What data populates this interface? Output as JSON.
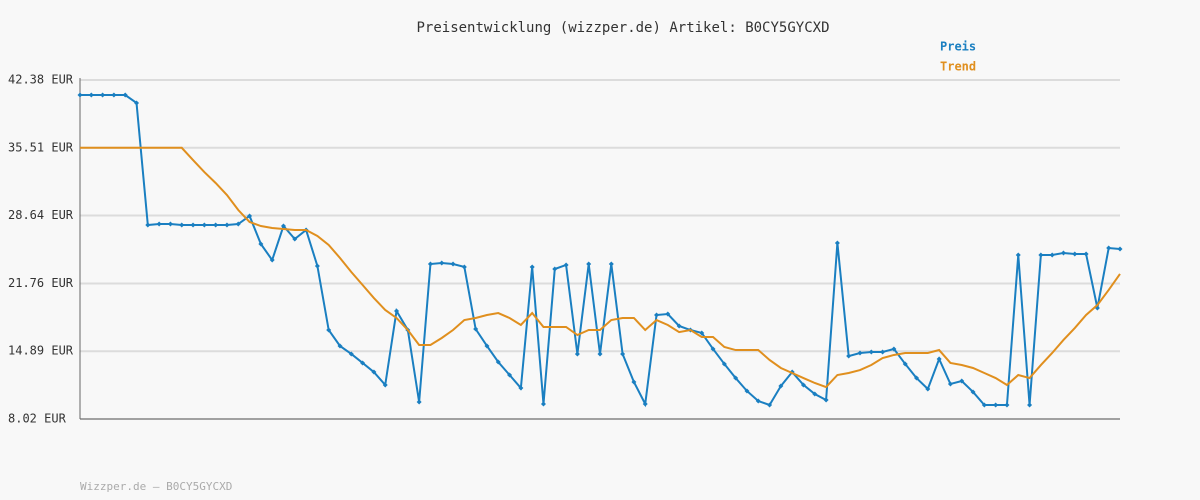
{
  "chart_data": {
    "type": "line",
    "title": "Preisentwicklung (wizzper.de) Artikel: B0CY5GYCXD",
    "footer": "Wizzper.de – B0CY5GYCXD",
    "legend": "top-right",
    "grid": true,
    "ylim": [
      8.02,
      42.38
    ],
    "yticks": [
      {
        "value": 8.02,
        "label": "8.02 EUR"
      },
      {
        "value": 14.89,
        "label": "14.89 EUR"
      },
      {
        "value": 21.76,
        "label": "21.76 EUR"
      },
      {
        "value": 28.64,
        "label": "28.64 EUR"
      },
      {
        "value": 35.51,
        "label": "35.51 EUR"
      },
      {
        "value": 42.38,
        "label": "42.38 EUR"
      }
    ],
    "series": [
      {
        "name": "Preis",
        "color": "#1a7fc1",
        "markers": true,
        "values": [
          40.86,
          40.86,
          40.86,
          40.86,
          40.86,
          40.05,
          27.68,
          27.78,
          27.78,
          27.68,
          27.68,
          27.68,
          27.68,
          27.68,
          27.78,
          28.6,
          25.76,
          24.13,
          27.58,
          26.26,
          27.18,
          23.53,
          17.04,
          15.42,
          14.61,
          13.7,
          12.78,
          11.47,
          18.97,
          17.04,
          9.74,
          23.73,
          23.83,
          23.73,
          23.43,
          17.14,
          15.42,
          13.8,
          12.48,
          11.16,
          23.43,
          9.54,
          23.22,
          23.63,
          14.61,
          23.73,
          14.61,
          23.73,
          14.61,
          11.77,
          9.54,
          18.56,
          18.66,
          17.45,
          17.04,
          16.74,
          15.12,
          13.6,
          12.17,
          10.86,
          9.84,
          9.44,
          11.36,
          12.78,
          11.47,
          10.55,
          9.94,
          25.86,
          14.4,
          14.71,
          14.81,
          14.81,
          15.12,
          13.6,
          12.17,
          11.06,
          14.1,
          11.57,
          11.87,
          10.76,
          9.44,
          9.44,
          9.44,
          24.64,
          9.44,
          24.64,
          24.64,
          24.85,
          24.74,
          24.74,
          19.27,
          25.35,
          25.25
        ]
      },
      {
        "name": "Trend",
        "color": "#e08f1e",
        "markers": false,
        "values": [
          35.51,
          35.51,
          35.51,
          35.51,
          35.51,
          35.51,
          35.51,
          35.51,
          35.51,
          35.51,
          34.27,
          33.05,
          31.94,
          30.72,
          29.2,
          27.99,
          27.58,
          27.38,
          27.28,
          27.18,
          27.18,
          26.57,
          25.66,
          24.34,
          22.92,
          21.6,
          20.28,
          19.07,
          18.26,
          17.04,
          15.52,
          15.52,
          16.23,
          17.04,
          18.05,
          18.26,
          18.56,
          18.76,
          18.26,
          17.55,
          18.76,
          17.35,
          17.35,
          17.35,
          16.53,
          17.04,
          17.04,
          18.05,
          18.26,
          18.26,
          17.04,
          18.05,
          17.55,
          16.83,
          17.04,
          16.33,
          16.33,
          15.32,
          15.01,
          15.01,
          15.01,
          14.0,
          13.19,
          12.68,
          12.17,
          11.67,
          11.26,
          12.48,
          12.68,
          12.98,
          13.49,
          14.2,
          14.51,
          14.71,
          14.71,
          14.71,
          15.01,
          13.7,
          13.49,
          13.19,
          12.68,
          12.17,
          11.47,
          12.48,
          12.17,
          13.49,
          14.71,
          16.03,
          17.24,
          18.56,
          19.57,
          21.1,
          22.72
        ]
      }
    ]
  }
}
